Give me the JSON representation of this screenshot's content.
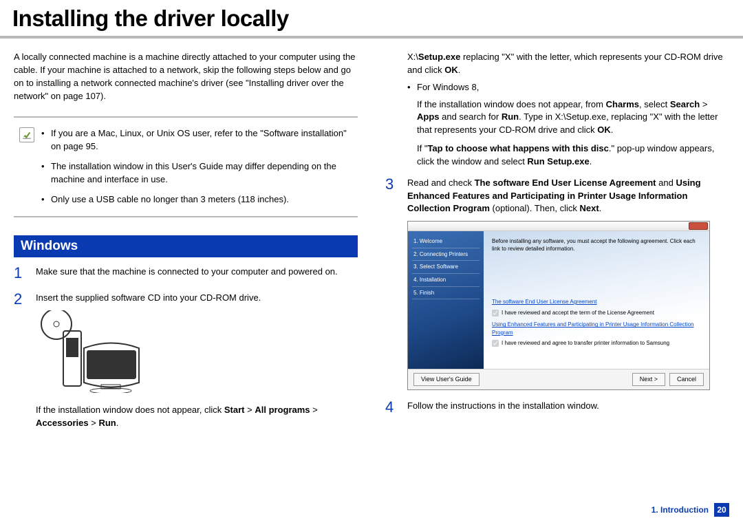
{
  "colors": {
    "accent": "#0a3ab2",
    "rule_light": "#b9b9b9",
    "note_rule": "#b9b9b9",
    "step_num": "#0a3ab2",
    "section_bg": "#0a3ab2",
    "footer_chapter": "#0a3ab2",
    "page_num_bg": "#0a3ab2"
  },
  "title": "Installing the driver locally",
  "intro": "A locally connected machine is a machine directly attached to your computer using the cable. If your machine is attached to a network, skip the following steps below and go on to installing a network connected machine's driver (see \"Installing driver over the network\" on page 107).",
  "note": {
    "items": [
      "If you are a Mac, Linux, or Unix OS user, refer to the \"Software installation\" on page 95.",
      "The installation window in this User's Guide may differ depending on the machine and interface in use.",
      "Only use a USB cable no longer than 3 meters (118 inches)."
    ]
  },
  "section": "Windows",
  "steps_left": {
    "s1": {
      "num": "1",
      "text": "Make sure that the machine is connected to your computer and powered on."
    },
    "s2": {
      "num": "2",
      "text": "Insert the supplied software CD into your CD-ROM drive.",
      "after_html": "If the installation window does not appear, click <b>Start</b> > <b>All programs</b> > <b>Accessories</b> > <b>Run</b>."
    }
  },
  "right": {
    "p1_html": "X:\\<b>Setup.exe</b> replacing \"X\" with the letter, which represents your CD-ROM drive and click <b>OK</b>.",
    "bullet_label": "For Windows 8,",
    "p2_html": "If the installation window does not appear, from <b>Charms</b>, select <b>Search</b> > <b>Apps</b> and search for <b>Run</b>. Type in X:\\Setup.exe, replacing \"X\" with the letter that represents your CD-ROM drive and click <b>OK</b>.",
    "p3_html": "If \"<b>Tap to choose what happens with this disc</b>.\" pop-up window appears, click the window and select <b>Run Setup.exe</b>.",
    "s3": {
      "num": "3",
      "html": "Read and check <b>The software End User License Agreement</b> and <b>Using Enhanced Features and Participating in Printer Usage Information Collection Program</b> (optional). Then, click <b>Next</b>."
    },
    "s4": {
      "num": "4",
      "text": "Follow the instructions in the installation window."
    }
  },
  "installer": {
    "side": [
      "1. Welcome",
      "2. Connecting Printers",
      "3. Select Software",
      "4. Installation",
      "5. Finish"
    ],
    "hint": "Before installing any software, you must accept the following agreement. Click each link to review detailed information.",
    "link1": "The software End User License Agreement",
    "check1": "I have reviewed and accept the term of the License Agreement",
    "link2": "Using Enhanced Features and Participating in Printer Usage Information Collection Program",
    "check2": "I have reviewed and agree to transfer printer information to Samsung",
    "btn_guide": "View User's Guide",
    "btn_next": "Next >",
    "btn_cancel": "Cancel"
  },
  "footer": {
    "chapter": "1. Introduction",
    "page": "20"
  }
}
